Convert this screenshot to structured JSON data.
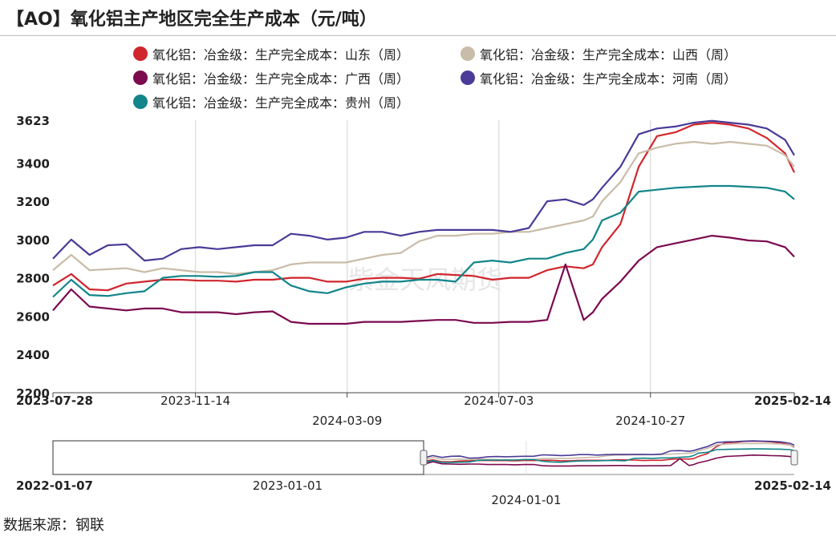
{
  "header": {
    "title": "【AO】氧化铝主产地区完全生产成本（元/吨）"
  },
  "colors": {
    "shandong": "#d0262d",
    "shanxi": "#c9bca8",
    "guangxi": "#7b0a4f",
    "henan": "#4b3a97",
    "guizhou": "#11858a"
  },
  "chart_data": {
    "type": "line",
    "x": [
      "2023-07-28",
      "2023-08-11",
      "2023-08-25",
      "2023-09-08",
      "2023-09-22",
      "2023-10-06",
      "2023-10-20",
      "2023-11-03",
      "2023-11-17",
      "2023-12-01",
      "2023-12-15",
      "2023-12-29",
      "2024-01-12",
      "2024-01-26",
      "2024-02-09",
      "2024-02-23",
      "2024-03-08",
      "2024-03-22",
      "2024-04-05",
      "2024-04-19",
      "2024-05-03",
      "2024-05-17",
      "2024-05-31",
      "2024-06-14",
      "2024-06-28",
      "2024-07-12",
      "2024-07-26",
      "2024-08-09",
      "2024-08-23",
      "2024-09-06",
      "2024-09-13",
      "2024-09-20",
      "2024-10-04",
      "2024-10-18",
      "2024-11-01",
      "2024-11-15",
      "2024-11-29",
      "2024-12-13",
      "2024-12-27",
      "2025-01-10",
      "2025-01-24",
      "2025-02-07",
      "2025-02-14"
    ],
    "series": [
      {
        "name": "氧化铝：冶金级：生产完全成本：山东（周）",
        "key": "shandong",
        "values": [
          2760,
          2820,
          2740,
          2735,
          2770,
          2780,
          2790,
          2790,
          2785,
          2785,
          2780,
          2790,
          2790,
          2800,
          2800,
          2780,
          2780,
          2795,
          2800,
          2800,
          2795,
          2820,
          2815,
          2810,
          2790,
          2800,
          2800,
          2840,
          2860,
          2850,
          2870,
          2960,
          3080,
          3380,
          3540,
          3560,
          3600,
          3610,
          3600,
          3580,
          3530,
          3450,
          3350
        ]
      },
      {
        "name": "氧化铝：冶金级：生产完全成本：山西（周）",
        "key": "shanxi",
        "values": [
          2840,
          2920,
          2840,
          2845,
          2850,
          2830,
          2850,
          2840,
          2830,
          2830,
          2820,
          2830,
          2840,
          2870,
          2880,
          2880,
          2880,
          2900,
          2920,
          2930,
          2990,
          3020,
          3020,
          3030,
          3030,
          3040,
          3040,
          3060,
          3080,
          3100,
          3120,
          3200,
          3300,
          3450,
          3480,
          3500,
          3510,
          3500,
          3510,
          3500,
          3490,
          3440,
          3380
        ]
      },
      {
        "name": "氧化铝：冶金级：生产完全成本：广西（周）",
        "key": "guangxi",
        "values": [
          2630,
          2740,
          2650,
          2640,
          2630,
          2640,
          2640,
          2620,
          2620,
          2620,
          2610,
          2620,
          2625,
          2570,
          2560,
          2560,
          2560,
          2570,
          2570,
          2570,
          2575,
          2580,
          2580,
          2565,
          2565,
          2570,
          2570,
          2580,
          2870,
          2580,
          2620,
          2690,
          2780,
          2890,
          2960,
          2980,
          3000,
          3020,
          3010,
          2995,
          2990,
          2960,
          2910
        ]
      },
      {
        "name": "氧化铝：冶金级：生产完全成本：河南（周）",
        "key": "henan",
        "values": [
          2900,
          3000,
          2920,
          2970,
          2975,
          2890,
          2900,
          2950,
          2960,
          2950,
          2960,
          2970,
          2970,
          3030,
          3020,
          3000,
          3010,
          3040,
          3040,
          3020,
          3040,
          3050,
          3050,
          3050,
          3050,
          3040,
          3060,
          3200,
          3210,
          3180,
          3210,
          3270,
          3380,
          3550,
          3580,
          3590,
          3610,
          3620,
          3610,
          3600,
          3580,
          3520,
          3440
        ]
      },
      {
        "name": "氧化铝：冶金级：生产完全成本：贵州（周）",
        "key": "guizhou",
        "values": [
          2700,
          2790,
          2710,
          2705,
          2720,
          2730,
          2800,
          2810,
          2810,
          2805,
          2810,
          2830,
          2830,
          2760,
          2730,
          2720,
          2750,
          2770,
          2780,
          2780,
          2790,
          2790,
          2780,
          2880,
          2890,
          2880,
          2900,
          2900,
          2930,
          2950,
          3000,
          3100,
          3140,
          3250,
          3260,
          3270,
          3275,
          3280,
          3280,
          3275,
          3270,
          3250,
          3210
        ]
      }
    ],
    "y_ticks": [
      "3623",
      "3400",
      "3200",
      "3000",
      "2800",
      "2600",
      "2400",
      "2200"
    ],
    "ylim": [
      2200,
      3623
    ],
    "x_tick_labels": [
      {
        "label": "2023-07-28",
        "date": "2023-07-28",
        "bold": true
      },
      {
        "label": "2023-11-14",
        "date": "2023-11-14",
        "bold": false
      },
      {
        "label": "2024-03-09",
        "date": "2024-03-09",
        "bold": false
      },
      {
        "label": "2024-07-03",
        "date": "2024-07-03",
        "bold": false
      },
      {
        "label": "2024-10-27",
        "date": "2024-10-27",
        "bold": false
      },
      {
        "label": "2025-02-14",
        "date": "2025-02-14",
        "bold": true
      }
    ],
    "grid": "vertical",
    "legend_position": "top",
    "watermark": "紫金天风期货"
  },
  "navigator": {
    "start_label": "2022-01-07",
    "mid_label_1": "2023-01-01",
    "mid_label_2": "2024-01-01",
    "end_label": "2025-02-14",
    "full_start": "2022-01-07",
    "window_start": "2023-07-28",
    "end": "2025-02-14"
  },
  "footer": {
    "source": "数据来源：钢联"
  }
}
